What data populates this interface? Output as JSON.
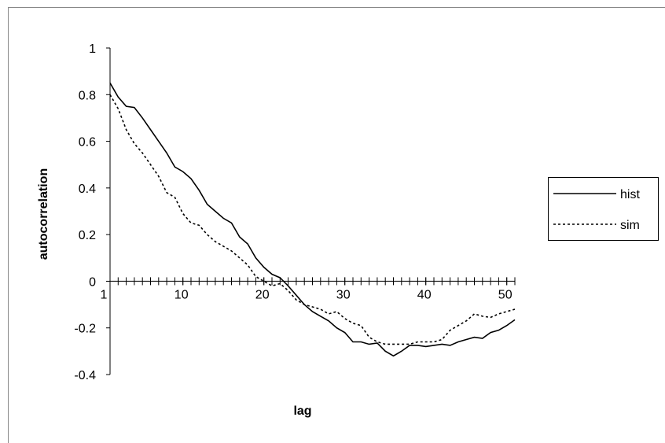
{
  "chart_data": {
    "type": "line",
    "x_label": "lag",
    "y_label": "autocorrelation",
    "x": [
      1,
      2,
      3,
      4,
      5,
      6,
      7,
      8,
      9,
      10,
      11,
      12,
      13,
      14,
      15,
      16,
      17,
      18,
      19,
      20,
      21,
      22,
      23,
      24,
      25,
      26,
      27,
      28,
      29,
      30,
      31,
      32,
      33,
      34,
      35,
      36,
      37,
      38,
      39,
      40,
      41,
      42,
      43,
      44,
      45,
      46,
      47,
      48,
      49,
      50,
      51
    ],
    "series": [
      {
        "name": "hist",
        "color": "#000000",
        "dash": "solid",
        "values": [
          0.85,
          0.79,
          0.75,
          0.745,
          0.7,
          0.65,
          0.6,
          0.55,
          0.49,
          0.47,
          0.44,
          0.39,
          0.33,
          0.3,
          0.27,
          0.25,
          0.19,
          0.16,
          0.1,
          0.06,
          0.03,
          0.015,
          -0.02,
          -0.06,
          -0.1,
          -0.13,
          -0.15,
          -0.17,
          -0.2,
          -0.22,
          -0.26,
          -0.26,
          -0.27,
          -0.265,
          -0.3,
          -0.32,
          -0.3,
          -0.275,
          -0.275,
          -0.28,
          -0.275,
          -0.27,
          -0.275,
          -0.26,
          -0.25,
          -0.24,
          -0.245,
          -0.22,
          -0.21,
          -0.19,
          -0.165
        ]
      },
      {
        "name": "sim",
        "color": "#000000",
        "dash": "dotted",
        "values": [
          0.8,
          0.74,
          0.65,
          0.59,
          0.55,
          0.5,
          0.45,
          0.38,
          0.36,
          0.29,
          0.25,
          0.24,
          0.2,
          0.17,
          0.15,
          0.13,
          0.1,
          0.07,
          0.02,
          0.0,
          -0.02,
          -0.01,
          -0.04,
          -0.08,
          -0.1,
          -0.11,
          -0.12,
          -0.14,
          -0.13,
          -0.16,
          -0.18,
          -0.19,
          -0.24,
          -0.26,
          -0.27,
          -0.27,
          -0.27,
          -0.27,
          -0.26,
          -0.26,
          -0.26,
          -0.25,
          -0.21,
          -0.19,
          -0.17,
          -0.14,
          -0.15,
          -0.155,
          -0.14,
          -0.13,
          -0.12
        ]
      }
    ],
    "xlim": [
      1,
      51
    ],
    "xticks": [
      1,
      10,
      20,
      30,
      40,
      50
    ],
    "ylim": [
      -0.4,
      1
    ],
    "yticks": [
      1,
      0.8,
      0.6,
      0.4,
      0.2,
      0,
      -0.2,
      -0.4
    ],
    "grid": false,
    "legend": "right"
  }
}
